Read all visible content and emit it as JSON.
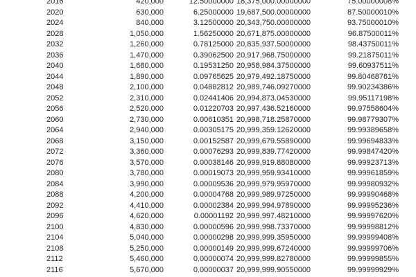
{
  "table": {
    "rows": [
      [
        "2016",
        "420,000",
        "12.50000000",
        "18,375,000.00000000",
        "75.00000008%"
      ],
      [
        "2020",
        "630,000",
        "6.25000000",
        "19,687,500.00000000",
        "87.50000010%"
      ],
      [
        "2024",
        "840,000",
        "3.12500000",
        "20,343,750.00000000",
        "93.75000010%"
      ],
      [
        "2028",
        "1,050,000",
        "1.56250000",
        "20,671,875.00000000",
        "96.87500011%"
      ],
      [
        "2032",
        "1,260,000",
        "0.78125000",
        "20,835,937.50000000",
        "98.43750011%"
      ],
      [
        "2036",
        "1,470,000",
        "0.39062500",
        "20,917,968.75000000",
        "99.21875011%"
      ],
      [
        "2040",
        "1,680,000",
        "0.19531250",
        "20,958,984.37500000",
        "99.60937511%"
      ],
      [
        "2044",
        "1,890,000",
        "0.09765625",
        "20,979,492.18750000",
        "99.80468761%"
      ],
      [
        "2048",
        "2,100,000",
        "0.04882812",
        "20,989,746.09270000",
        "99.90234386%"
      ],
      [
        "2052",
        "2,310,000",
        "0.02441406",
        "20,994,873.04530000",
        "99.95117198%"
      ],
      [
        "2056",
        "2,520,000",
        "0.01220703",
        "20,997,436.52160000",
        "99.97558604%"
      ],
      [
        "2060",
        "2,730,000",
        "0.00610351",
        "20,998,718.25870000",
        "99.98779307%"
      ],
      [
        "2064",
        "2,940,000",
        "0.00305175",
        "20,999,359.12620000",
        "99.99389658%"
      ],
      [
        "2068",
        "3,150,000",
        "0.00152587",
        "20,999,679.55890000",
        "99.99694833%"
      ],
      [
        "2072",
        "3,360,000",
        "0.00076293",
        "20,999,839.77420000",
        "99.99847420%"
      ],
      [
        "2076",
        "3,570,000",
        "0.00038146",
        "20,999,919.88080000",
        "99.99923713%"
      ],
      [
        "2080",
        "3,780,000",
        "0.00019073",
        "20,999,959.93410000",
        "99.99961859%"
      ],
      [
        "2084",
        "3,990,000",
        "0.00009536",
        "20,999,979.95970000",
        "99.99980932%"
      ],
      [
        "2088",
        "4,200,000",
        "0.00004768",
        "20,999,989.97250000",
        "99.99990468%"
      ],
      [
        "2092",
        "4,410,000",
        "0.00002384",
        "20,999,994.97890000",
        "99.99995236%"
      ],
      [
        "2096",
        "4,620,000",
        "0.00001192",
        "20,999,997.48210000",
        "99.99997620%"
      ],
      [
        "2100",
        "4,830,000",
        "0.00000596",
        "20,999,998.73370000",
        "99.99998812%"
      ],
      [
        "2104",
        "5,040,000",
        "0.00000298",
        "20,999,999.35950000",
        "99.99999408%"
      ],
      [
        "2108",
        "5,250,000",
        "0.00000149",
        "20,999,999.67240000",
        "99.99999706%"
      ],
      [
        "2112",
        "5,460,000",
        "0.00000074",
        "20,999,999.82780000",
        "99.99999855%"
      ],
      [
        "2116",
        "5,670,000",
        "0.00000037",
        "20,999,999.90550000",
        "99.99999929%"
      ]
    ]
  }
}
